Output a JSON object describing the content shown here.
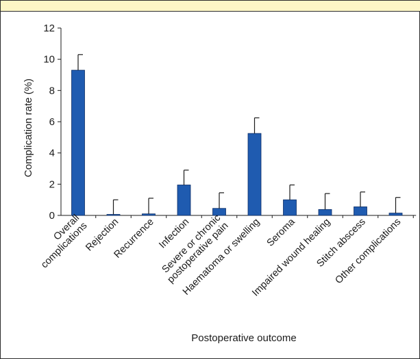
{
  "chart_data": {
    "type": "bar",
    "xlabel": "Postoperative outcome",
    "ylabel": "Complication rate (%)",
    "ylim": [
      0,
      12
    ],
    "yticks": [
      0,
      2,
      4,
      6,
      8,
      10,
      12
    ],
    "grid": false,
    "categories": [
      [
        "Overall",
        "complications"
      ],
      [
        "Rejection"
      ],
      [
        "Recurrence"
      ],
      [
        "Infection"
      ],
      [
        "Severe or chronic",
        "postoperative pain"
      ],
      [
        "Haematoma or swelling"
      ],
      [
        "Seroma"
      ],
      [
        "Impaired wound healing"
      ],
      [
        "Stitch abscess"
      ],
      [
        "Other complications"
      ]
    ],
    "values": [
      9.3,
      0.02,
      0.1,
      1.95,
      0.45,
      5.25,
      1.0,
      0.38,
      0.55,
      0.15
    ],
    "error_upper": [
      10.3,
      1.0,
      1.1,
      2.9,
      1.45,
      6.25,
      1.95,
      1.4,
      1.5,
      1.15
    ],
    "bar_color": "#1f5bb0"
  }
}
